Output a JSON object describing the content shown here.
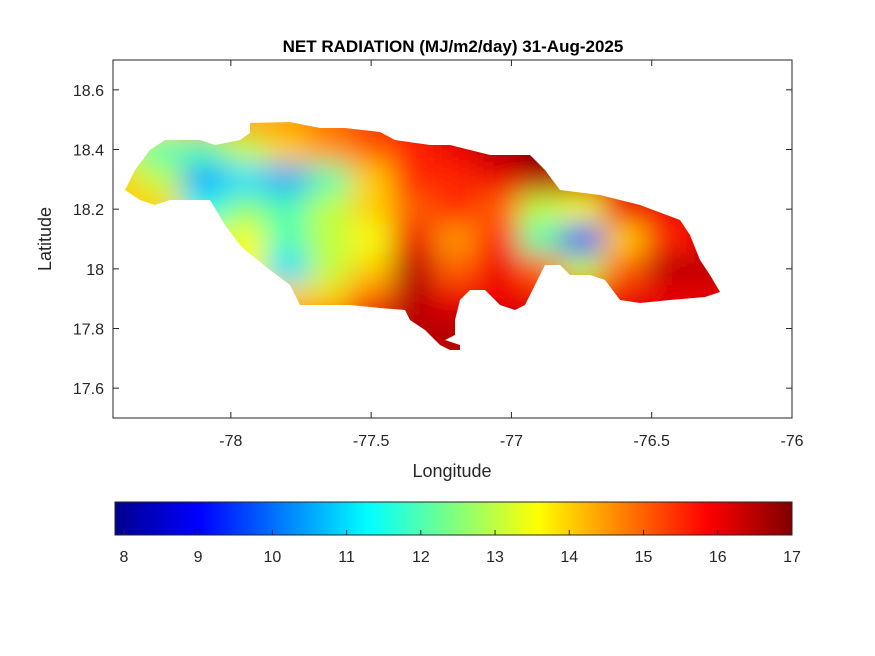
{
  "chart_data": {
    "type": "heatmap",
    "title": "NET RADIATION (MJ/m2/day) 31-Aug-2025",
    "xlabel": "Longitude",
    "ylabel": "Latitude",
    "xlim": [
      -78.42,
      -76
    ],
    "ylim": [
      17.5,
      18.7
    ],
    "xticks": [
      "-78",
      "-77.5",
      "-77",
      "-76.5",
      "-76"
    ],
    "xtick_values": [
      -78,
      -77.5,
      -77,
      -76.5,
      -76
    ],
    "yticks": [
      "17.6",
      "17.8",
      "18",
      "18.2",
      "18.4",
      "18.6"
    ],
    "ytick_values": [
      17.6,
      17.8,
      18,
      18.2,
      18.4,
      18.6
    ],
    "grid": false,
    "colormap": "jet",
    "colorbar": {
      "placement": "bottom",
      "range": [
        7.88,
        17
      ],
      "ticks": [
        "8",
        "9",
        "10",
        "11",
        "12",
        "13",
        "14",
        "15",
        "16",
        "17"
      ],
      "tick_values": [
        8,
        9,
        10,
        11,
        12,
        13,
        14,
        15,
        16,
        17
      ]
    },
    "grid_lon": [
      -78.35,
      -78.2,
      -78.05,
      -77.9,
      -77.75,
      -77.6,
      -77.45,
      -77.3,
      -77.15,
      -77.0,
      -76.85,
      -76.7,
      -76.55,
      -76.4,
      -76.25
    ],
    "grid_lat": [
      18.45,
      18.35,
      18.25,
      18.15,
      18.05,
      17.95,
      17.85,
      17.75
    ],
    "values": [
      [
        14,
        14,
        14.5,
        14.5,
        14.5,
        15,
        15.5,
        16,
        16.5,
        17,
        17,
        17,
        17,
        17,
        17
      ],
      [
        13,
        12,
        12,
        13,
        14,
        14.5,
        15,
        15.5,
        16,
        16.5,
        17,
        16.5,
        16.5,
        16.5,
        16
      ],
      [
        14,
        13,
        10.5,
        11,
        10.5,
        12,
        14,
        15.5,
        15.5,
        16,
        16.5,
        16.5,
        16,
        16.5,
        16
      ],
      [
        14,
        14,
        11.5,
        12.5,
        12,
        13,
        14,
        15,
        15.5,
        15,
        13,
        13.5,
        16,
        16,
        16
      ],
      [
        14,
        14,
        13,
        13.5,
        12,
        13,
        13.5,
        16,
        14.5,
        15.5,
        12,
        9.5,
        14,
        15.5,
        16
      ],
      [
        14,
        14,
        14,
        13.5,
        11,
        13,
        14,
        16.5,
        15,
        16,
        15,
        13,
        15,
        16.5,
        16.5
      ],
      [
        14,
        14,
        14,
        14,
        14,
        14,
        15,
        16.5,
        16,
        16,
        16,
        16,
        16,
        16,
        16
      ],
      [
        14,
        14,
        14,
        14,
        16,
        16,
        16.5,
        16.5,
        16.5,
        16.5,
        16.5,
        16.5,
        16.5,
        16.5,
        16.5
      ]
    ]
  }
}
